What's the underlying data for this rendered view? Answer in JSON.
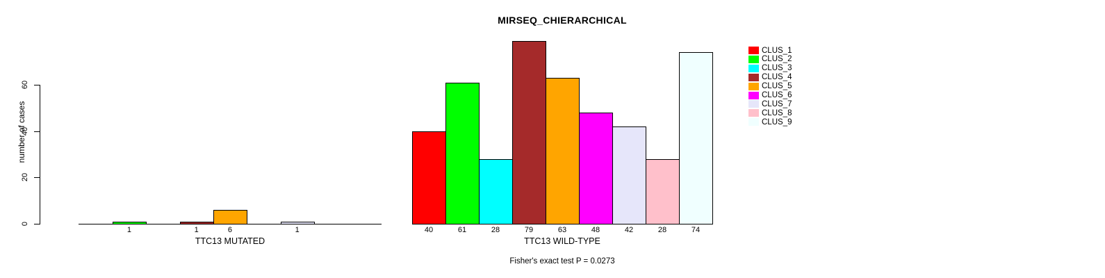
{
  "title": "MIRSEQ_CHIERARCHICAL",
  "annotation": "Fisher's exact test P = 0.0273",
  "y_axis": {
    "label": "number of cases",
    "ticks": [
      "0",
      "20",
      "40",
      "60"
    ],
    "tick_values": [
      0,
      20,
      40,
      60
    ]
  },
  "chart_data": {
    "type": "bar",
    "title": "MIRSEQ_CHIERARCHICAL",
    "ylabel": "number of cases",
    "ylim": [
      0,
      60
    ],
    "yticks": [
      0,
      20,
      40,
      60
    ],
    "grid": false,
    "legend_position": "right",
    "annotation": "Fisher's exact test P = 0.0273",
    "colors": [
      "#FF0000",
      "#00FF00",
      "#00FFFF",
      "#A52A2A",
      "#FFA500",
      "#FF00FF",
      "#E6E6FA",
      "#FFC0CB",
      "#F0FFFF"
    ],
    "legend": [
      {
        "label": "CLUS_1",
        "color": "#FF0000"
      },
      {
        "label": "CLUS_2",
        "color": "#00FF00"
      },
      {
        "label": "CLUS_3",
        "color": "#00FFFF"
      },
      {
        "label": "CLUS_4",
        "color": "#A52A2A"
      },
      {
        "label": "CLUS_5",
        "color": "#FFA500"
      },
      {
        "label": "CLUS_6",
        "color": "#FF00FF"
      },
      {
        "label": "CLUS_7",
        "color": "#E6E6FA"
      },
      {
        "label": "CLUS_8",
        "color": "#FFC0CB"
      },
      {
        "label": "CLUS_9",
        "color": "#F0FFFF"
      }
    ],
    "panels": [
      {
        "xlabel": "TTC13 MUTATED",
        "categories": [
          "CLUS_1",
          "CLUS_2",
          "CLUS_3",
          "CLUS_4",
          "CLUS_5",
          "CLUS_6",
          "CLUS_7",
          "CLUS_8",
          "CLUS_9"
        ],
        "values": [
          0,
          1,
          0,
          1,
          6,
          0,
          1,
          0,
          0
        ],
        "bar_labels": [
          "",
          "1",
          "",
          "1",
          "6",
          "",
          "1",
          "",
          ""
        ]
      },
      {
        "xlabel": "TTC13 WILD-TYPE",
        "categories": [
          "CLUS_1",
          "CLUS_2",
          "CLUS_3",
          "CLUS_4",
          "CLUS_5",
          "CLUS_6",
          "CLUS_7",
          "CLUS_8",
          "CLUS_9"
        ],
        "values": [
          40,
          61,
          28,
          79,
          63,
          48,
          42,
          28,
          74
        ],
        "bar_labels": [
          "40",
          "61",
          "28",
          "79",
          "63",
          "48",
          "42",
          "28",
          "74"
        ]
      }
    ]
  }
}
